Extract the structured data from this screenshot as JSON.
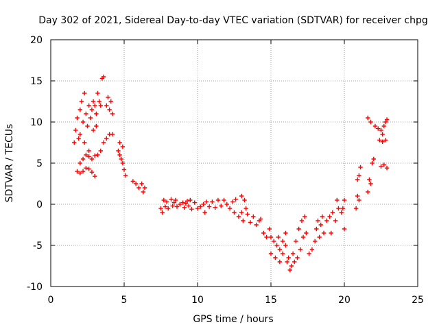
{
  "chart_data": {
    "type": "scatter",
    "title": "Day 302 of 2021, Sidereal Day-to-day VTEC variation (SDTVAR) for receiver chpg",
    "xlabel": "GPS time / hours",
    "ylabel": "SDTVAR / TECUs",
    "xlim": [
      0,
      25
    ],
    "ylim": [
      -10,
      20
    ],
    "xticks": [
      "0",
      "5",
      "10",
      "15",
      "20",
      "25"
    ],
    "yticks": [
      "-10",
      "-5",
      "0",
      "5",
      "10",
      "15",
      "20"
    ],
    "grid": true,
    "marker": "+",
    "color": "#ff0000",
    "series": [
      {
        "name": "SDTVAR",
        "points": [
          [
            1.6,
            7.5
          ],
          [
            1.7,
            9.0
          ],
          [
            1.8,
            10.5
          ],
          [
            1.9,
            8.0
          ],
          [
            2.0,
            11.5
          ],
          [
            2.1,
            12.5
          ],
          [
            2.2,
            10.0
          ],
          [
            2.3,
            13.5
          ],
          [
            2.4,
            11.0
          ],
          [
            2.5,
            9.5
          ],
          [
            2.6,
            12.0
          ],
          [
            2.7,
            10.5
          ],
          [
            2.8,
            11.5
          ],
          [
            2.9,
            12.5
          ],
          [
            3.0,
            12.0
          ],
          [
            3.1,
            11.0
          ],
          [
            3.2,
            13.5
          ],
          [
            3.3,
            12.5
          ],
          [
            3.4,
            12.0
          ],
          [
            3.5,
            15.3
          ],
          [
            3.6,
            15.5
          ],
          [
            3.8,
            12.0
          ],
          [
            3.9,
            13.0
          ],
          [
            4.0,
            11.5
          ],
          [
            4.2,
            11.0
          ],
          [
            4.1,
            12.5
          ],
          [
            1.8,
            4.0
          ],
          [
            2.0,
            3.8
          ],
          [
            2.2,
            4.0
          ],
          [
            2.4,
            4.4
          ],
          [
            2.6,
            4.3
          ],
          [
            2.8,
            3.9
          ],
          [
            3.0,
            3.4
          ],
          [
            2.0,
            5.0
          ],
          [
            2.2,
            5.5
          ],
          [
            2.4,
            6.0
          ],
          [
            2.6,
            5.8
          ],
          [
            2.8,
            5.5
          ],
          [
            3.0,
            5.9
          ],
          [
            3.2,
            6.0
          ],
          [
            3.4,
            6.5
          ],
          [
            3.6,
            7.5
          ],
          [
            3.8,
            8.0
          ],
          [
            4.0,
            8.5
          ],
          [
            4.2,
            8.5
          ],
          [
            2.0,
            8.5
          ],
          [
            2.3,
            7.5
          ],
          [
            2.6,
            6.5
          ],
          [
            2.9,
            9.0
          ],
          [
            3.1,
            9.5
          ],
          [
            4.6,
            6.5
          ],
          [
            4.7,
            6.0
          ],
          [
            4.8,
            5.5
          ],
          [
            4.9,
            5.0
          ],
          [
            5.0,
            4.2
          ],
          [
            5.1,
            3.5
          ],
          [
            4.7,
            7.5
          ],
          [
            4.9,
            7.0
          ],
          [
            5.8,
            2.5
          ],
          [
            6.0,
            2.0
          ],
          [
            6.2,
            2.5
          ],
          [
            6.3,
            1.5
          ],
          [
            6.4,
            2.0
          ],
          [
            5.6,
            2.8
          ],
          [
            7.5,
            -0.5
          ],
          [
            7.6,
            -1.0
          ],
          [
            7.7,
            0.5
          ],
          [
            7.8,
            -0.3
          ],
          [
            7.9,
            0.3
          ],
          [
            8.0,
            -0.5
          ],
          [
            8.2,
            0.6
          ],
          [
            8.3,
            -0.2
          ],
          [
            8.4,
            0.2
          ],
          [
            8.5,
            0.5
          ],
          [
            8.6,
            -0.3
          ],
          [
            8.8,
            0.0
          ],
          [
            9.0,
            0.2
          ],
          [
            9.1,
            -0.4
          ],
          [
            9.2,
            0.1
          ],
          [
            9.3,
            0.4
          ],
          [
            9.4,
            -0.2
          ],
          [
            9.5,
            0.5
          ],
          [
            9.6,
            -0.6
          ],
          [
            9.8,
            0.2
          ],
          [
            10.0,
            -0.5
          ],
          [
            10.2,
            -0.3
          ],
          [
            10.4,
            0.0
          ],
          [
            10.5,
            -1.0
          ],
          [
            10.6,
            0.3
          ],
          [
            10.8,
            -0.3
          ],
          [
            11.0,
            0.3
          ],
          [
            11.2,
            -0.4
          ],
          [
            11.4,
            0.5
          ],
          [
            11.6,
            -0.2
          ],
          [
            11.8,
            0.5
          ],
          [
            12.0,
            0.0
          ],
          [
            12.2,
            -0.5
          ],
          [
            12.4,
            0.3
          ],
          [
            12.5,
            -1.0
          ],
          [
            12.6,
            0.6
          ],
          [
            12.8,
            -1.5
          ],
          [
            13.0,
            -1.0
          ],
          [
            13.0,
            1.0
          ],
          [
            13.2,
            0.5
          ],
          [
            13.3,
            -0.5
          ],
          [
            13.4,
            -1.2
          ],
          [
            13.1,
            -2.0
          ],
          [
            13.8,
            -1.5
          ],
          [
            14.0,
            -2.5
          ],
          [
            14.2,
            -2.0
          ],
          [
            14.3,
            -1.8
          ],
          [
            13.6,
            -2.2
          ],
          [
            14.5,
            -3.5
          ],
          [
            14.7,
            -4.0
          ],
          [
            14.9,
            -3.0
          ],
          [
            15.0,
            -4.0
          ],
          [
            15.2,
            -4.5
          ],
          [
            15.4,
            -5.0
          ],
          [
            15.6,
            -5.5
          ],
          [
            15.8,
            -6.0
          ],
          [
            16.0,
            -5.0
          ],
          [
            16.2,
            -6.5
          ],
          [
            16.4,
            -7.5
          ],
          [
            16.6,
            -7.0
          ],
          [
            16.8,
            -6.5
          ],
          [
            17.0,
            -5.5
          ],
          [
            17.2,
            -4.0
          ],
          [
            17.4,
            -3.5
          ],
          [
            15.5,
            -4.0
          ],
          [
            15.8,
            -4.5
          ],
          [
            16.0,
            -3.5
          ],
          [
            16.1,
            -7.0
          ],
          [
            16.3,
            -8.0
          ],
          [
            16.5,
            -6.0
          ],
          [
            16.7,
            -4.5
          ],
          [
            16.9,
            -3.0
          ],
          [
            17.1,
            -2.0
          ],
          [
            17.3,
            -1.5
          ],
          [
            15.0,
            -6.0
          ],
          [
            15.3,
            -6.5
          ],
          [
            15.6,
            -7.0
          ],
          [
            17.6,
            -6.0
          ],
          [
            17.8,
            -5.5
          ],
          [
            18.0,
            -4.5
          ],
          [
            18.1,
            -3.0
          ],
          [
            18.2,
            -2.0
          ],
          [
            18.4,
            -2.5
          ],
          [
            18.6,
            -3.5
          ],
          [
            18.8,
            -2.0
          ],
          [
            19.0,
            -1.5
          ],
          [
            19.2,
            -1.0
          ],
          [
            19.4,
            -2.0
          ],
          [
            19.6,
            -0.5
          ],
          [
            19.8,
            -1.0
          ],
          [
            20.0,
            0.5
          ],
          [
            19.5,
            0.5
          ],
          [
            19.9,
            -0.5
          ],
          [
            18.5,
            -1.5
          ],
          [
            18.3,
            -4.0
          ],
          [
            19.1,
            -3.5
          ],
          [
            20.0,
            -3.0
          ],
          [
            20.8,
            -0.5
          ],
          [
            20.9,
            1.0
          ],
          [
            21.0,
            0.5
          ],
          [
            20.9,
            3.0
          ],
          [
            21.0,
            3.5
          ],
          [
            21.1,
            4.5
          ],
          [
            21.6,
            1.5
          ],
          [
            21.7,
            3.0
          ],
          [
            21.8,
            2.5
          ],
          [
            21.6,
            10.5
          ],
          [
            21.8,
            10.0
          ],
          [
            21.9,
            5.0
          ],
          [
            22.0,
            5.5
          ],
          [
            22.1,
            9.5
          ],
          [
            22.3,
            9.2
          ],
          [
            22.5,
            9.0
          ],
          [
            22.6,
            8.5
          ],
          [
            22.7,
            9.5
          ],
          [
            22.8,
            10.0
          ],
          [
            22.9,
            10.3
          ],
          [
            22.4,
            7.8
          ],
          [
            22.6,
            7.6
          ],
          [
            22.8,
            7.8
          ],
          [
            22.5,
            4.6
          ],
          [
            22.7,
            4.8
          ],
          [
            22.9,
            4.4
          ]
        ]
      }
    ]
  }
}
